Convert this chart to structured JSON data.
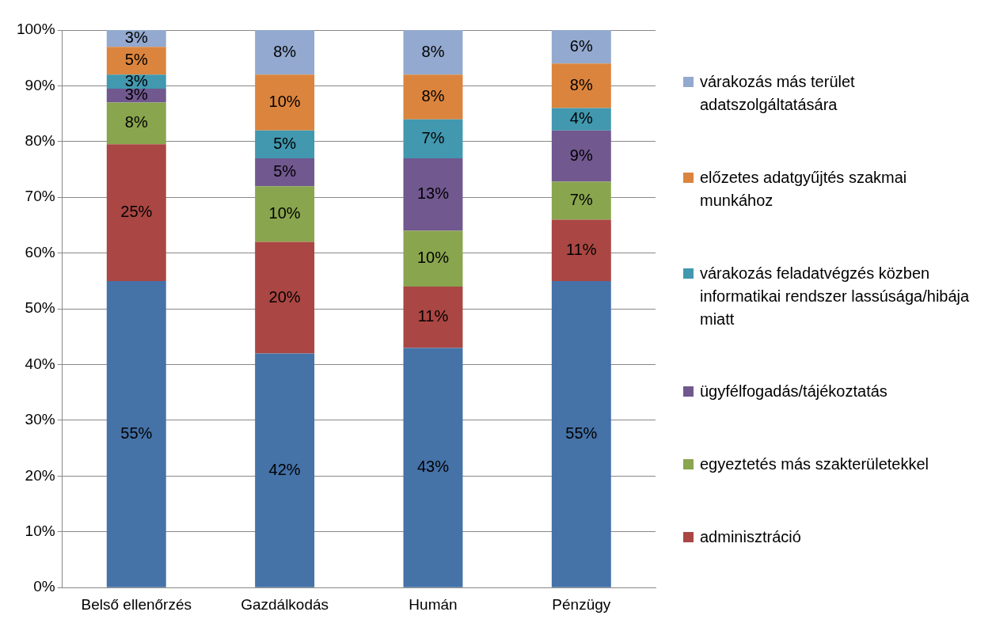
{
  "chart_data": {
    "type": "bar",
    "stacked": true,
    "categories": [
      "Belső ellenőrzés",
      "Gazdálkodás",
      "Humán",
      "Pénzügy"
    ],
    "ylim": [
      0,
      100
    ],
    "yticks": [
      {
        "value": 0,
        "label": "0%"
      },
      {
        "value": 10,
        "label": "10%"
      },
      {
        "value": 20,
        "label": "20%"
      },
      {
        "value": 30,
        "label": "30%"
      },
      {
        "value": 40,
        "label": "40%"
      },
      {
        "value": 50,
        "label": "50%"
      },
      {
        "value": 60,
        "label": "60%"
      },
      {
        "value": 70,
        "label": "70%"
      },
      {
        "value": 80,
        "label": "80%"
      },
      {
        "value": 90,
        "label": "90%"
      },
      {
        "value": 100,
        "label": "100%"
      }
    ],
    "grid": "y",
    "legend": "right",
    "series": [
      {
        "color": "#4572a7",
        "values": [
          55,
          42,
          43,
          55
        ],
        "value_labels": [
          "55%",
          "42%",
          "43%",
          "55%"
        ]
      },
      {
        "name": "adminisztráció",
        "color": "#aa4643",
        "values": [
          24.5,
          20,
          11,
          11
        ],
        "value_labels": [
          "25%",
          "20%",
          "11%",
          "11%"
        ]
      },
      {
        "name": "egyeztetés más szakterületekkel",
        "color": "#89a54e",
        "values": [
          7.5,
          10,
          10,
          6.8
        ],
        "value_labels": [
          "8%",
          "10%",
          "10%",
          "7%"
        ]
      },
      {
        "name": "ügyfélfogadás/tájékoztatás",
        "color": "#71588f",
        "values": [
          2.5,
          5,
          13,
          9.2
        ],
        "value_labels": [
          "3%",
          "5%",
          "13%",
          "9%"
        ]
      },
      {
        "name": "várakozás feladatvégzés közben informatikai rendszer lassúsága/hibája miatt",
        "color": "#4198af",
        "values": [
          2.5,
          5,
          7,
          4
        ],
        "value_labels": [
          "3%",
          "5%",
          "7%",
          "4%"
        ]
      },
      {
        "name": "előzetes adatgyűjtés szakmai munkához",
        "color": "#db843d",
        "values": [
          5,
          10,
          8,
          8
        ],
        "value_labels": [
          "5%",
          "10%",
          "8%",
          "8%"
        ]
      },
      {
        "name": "várakozás más terület adatszolgáltatására",
        "color": "#93a9cf",
        "values": [
          3,
          8,
          8,
          6
        ],
        "value_labels": [
          "3%",
          "8%",
          "8%",
          "6%"
        ]
      }
    ]
  }
}
